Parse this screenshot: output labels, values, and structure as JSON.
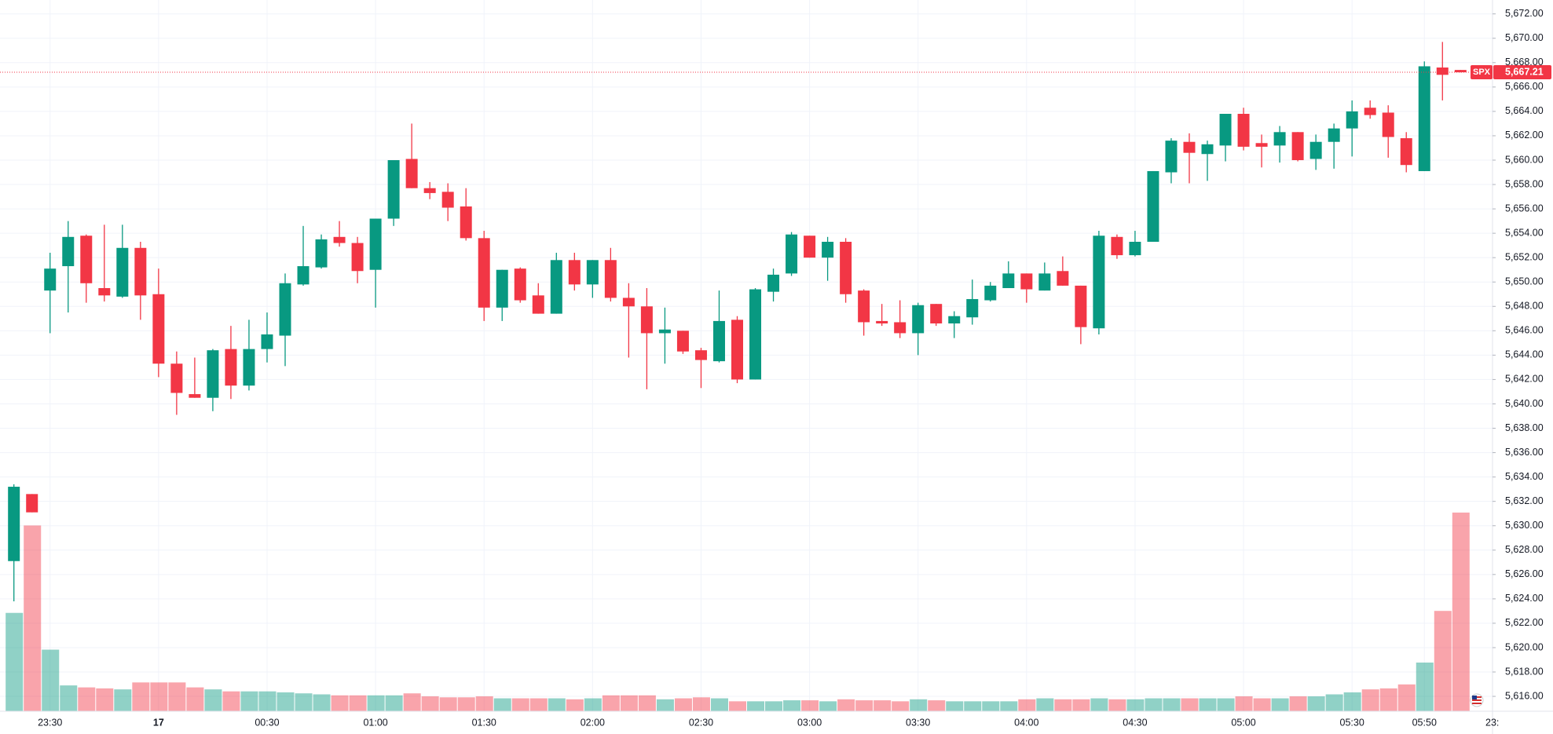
{
  "chart_data": {
    "type": "candlestick",
    "symbol": "SPX",
    "up_color": "#089981",
    "down_color": "#f23645",
    "grid": true,
    "last_price": {
      "value": 5667.21,
      "label": "5,667.21"
    },
    "x_edge_label": "23:",
    "categories": [
      null,
      null,
      "23:30",
      null,
      null,
      null,
      null,
      null,
      "17",
      null,
      null,
      null,
      null,
      null,
      "00:30",
      null,
      null,
      null,
      null,
      null,
      "01:00",
      null,
      null,
      null,
      null,
      null,
      "01:30",
      null,
      null,
      null,
      null,
      null,
      "02:00",
      null,
      null,
      null,
      null,
      null,
      "02:30",
      null,
      null,
      null,
      null,
      null,
      "03:00",
      null,
      null,
      null,
      null,
      null,
      "03:30",
      null,
      null,
      null,
      null,
      null,
      "04:00",
      null,
      null,
      null,
      null,
      null,
      "04:30",
      null,
      null,
      null,
      null,
      null,
      "05:00",
      null,
      null,
      null,
      null,
      null,
      "05:30",
      null,
      null,
      null,
      "05:50",
      null,
      null
    ],
    "open": [
      5627.1,
      5632.6,
      5649.3,
      5651.3,
      5653.8,
      5649.5,
      5648.8,
      5652.8,
      5649.0,
      5643.3,
      5640.8,
      5640.5,
      5644.5,
      5641.5,
      5644.5,
      5645.6,
      5649.8,
      5651.2,
      5653.7,
      5653.2,
      5651.0,
      5655.2,
      5660.1,
      5657.7,
      5657.4,
      5656.2,
      5653.6,
      5647.9,
      5651.1,
      5648.9,
      5647.4,
      5651.8,
      5649.8,
      5651.8,
      5648.7,
      5648.0,
      5645.8,
      5646.0,
      5644.4,
      5643.5,
      5646.9,
      5642.0,
      5649.2,
      5650.7,
      5653.8,
      5652.0,
      5653.3,
      5649.3,
      5646.8,
      5646.7,
      5645.8,
      5648.2,
      5646.6,
      5647.1,
      5648.5,
      5649.5,
      5650.7,
      5649.3,
      5650.9,
      5649.7,
      5646.2,
      5653.7,
      5652.2,
      5653.3,
      5659.0,
      5661.5,
      5660.5,
      5661.2,
      5663.8,
      5661.4,
      5661.2,
      5662.3,
      5660.1,
      5661.5,
      5662.6,
      5664.3,
      5663.9,
      5661.8,
      5659.1,
      5667.6,
      5667.4
    ],
    "high": [
      5633.4,
      5632.6,
      5652.4,
      5655.0,
      5653.9,
      5654.7,
      5654.7,
      5653.3,
      5651.1,
      5644.3,
      5643.8,
      5644.5,
      5646.4,
      5646.9,
      5647.5,
      5650.7,
      5654.6,
      5653.9,
      5655.0,
      5653.7,
      5655.2,
      5660.0,
      5663.0,
      5658.2,
      5658.1,
      5657.7,
      5654.2,
      5651.0,
      5651.2,
      5649.9,
      5652.4,
      5652.4,
      5651.8,
      5652.8,
      5649.9,
      5649.5,
      5647.9,
      5646.0,
      5644.6,
      5649.3,
      5647.2,
      5649.5,
      5651.1,
      5654.1,
      5653.8,
      5653.7,
      5653.6,
      5649.4,
      5648.2,
      5648.5,
      5648.3,
      5648.2,
      5647.6,
      5650.2,
      5650.0,
      5651.7,
      5650.7,
      5651.6,
      5652.1,
      5649.7,
      5654.2,
      5653.9,
      5654.2,
      5659.1,
      5661.8,
      5662.2,
      5661.6,
      5663.8,
      5664.3,
      5662.1,
      5662.8,
      5662.3,
      5662.1,
      5663.0,
      5664.9,
      5664.9,
      5664.5,
      5662.3,
      5668.1,
      5669.7,
      5667.4
    ],
    "low": [
      5623.8,
      5631.1,
      5645.8,
      5647.5,
      5648.3,
      5648.4,
      5648.7,
      5646.9,
      5642.2,
      5639.1,
      5640.5,
      5639.4,
      5640.4,
      5641.1,
      5643.4,
      5643.1,
      5649.7,
      5651.1,
      5652.9,
      5649.9,
      5647.9,
      5654.6,
      5657.7,
      5656.8,
      5655.0,
      5653.4,
      5646.8,
      5646.8,
      5648.3,
      5647.4,
      5647.4,
      5649.3,
      5648.7,
      5648.4,
      5643.8,
      5641.2,
      5643.3,
      5644.1,
      5641.3,
      5643.4,
      5641.7,
      5642.0,
      5648.4,
      5650.5,
      5652.0,
      5650.1,
      5648.3,
      5645.6,
      5646.4,
      5645.4,
      5644.0,
      5646.4,
      5645.4,
      5646.5,
      5648.4,
      5649.5,
      5648.3,
      5649.3,
      5649.7,
      5644.9,
      5645.7,
      5651.9,
      5652.1,
      5653.3,
      5658.1,
      5658.1,
      5658.3,
      5659.9,
      5660.8,
      5659.4,
      5659.8,
      5659.9,
      5659.2,
      5659.3,
      5660.3,
      5663.4,
      5660.2,
      5659.0,
      5659.1,
      5664.9,
      5667.2
    ],
    "close": [
      5633.2,
      5631.1,
      5651.1,
      5653.7,
      5649.9,
      5648.9,
      5652.8,
      5648.9,
      5643.3,
      5640.9,
      5640.5,
      5644.4,
      5641.5,
      5644.5,
      5645.7,
      5649.9,
      5651.3,
      5653.5,
      5653.2,
      5650.9,
      5655.2,
      5660.0,
      5657.7,
      5657.3,
      5656.1,
      5653.6,
      5647.9,
      5651.0,
      5648.5,
      5647.4,
      5651.8,
      5649.8,
      5651.8,
      5648.7,
      5648.0,
      5645.8,
      5646.1,
      5644.3,
      5643.6,
      5646.8,
      5642.0,
      5649.4,
      5650.6,
      5653.9,
      5652.0,
      5653.3,
      5649.0,
      5646.7,
      5646.6,
      5645.8,
      5648.1,
      5646.6,
      5647.2,
      5648.6,
      5649.7,
      5650.7,
      5649.4,
      5650.7,
      5649.7,
      5646.3,
      5653.8,
      5652.2,
      5653.3,
      5659.1,
      5661.6,
      5660.6,
      5661.3,
      5663.8,
      5661.1,
      5661.1,
      5662.3,
      5660.0,
      5661.5,
      5662.6,
      5664.0,
      5663.7,
      5661.9,
      5659.6,
      5667.7,
      5667.0,
      5667.21
    ],
    "volume": [
      99,
      187,
      62,
      26,
      24,
      23,
      22,
      29,
      29,
      29,
      24,
      22,
      20,
      20,
      20,
      19,
      18,
      17,
      16,
      16,
      16,
      16,
      18,
      15,
      14,
      14,
      15,
      13,
      13,
      13,
      13,
      12,
      13,
      16,
      16,
      16,
      12,
      13,
      14,
      13,
      10,
      10,
      10,
      11,
      11,
      10,
      12,
      11,
      11,
      10,
      12,
      11,
      10,
      10,
      10,
      10,
      12,
      13,
      12,
      12,
      13,
      12,
      12,
      13,
      13,
      13,
      13,
      13,
      15,
      13,
      13,
      15,
      15,
      17,
      19,
      22,
      23,
      27,
      49,
      101,
      200
    ],
    "vlim": [
      0,
      716
    ],
    "ylim": [
      5614.78,
      5673.14
    ],
    "yticks": [
      {
        "value": 5616,
        "label": "5,616.00"
      },
      {
        "value": 5618,
        "label": "5,618.00"
      },
      {
        "value": 5620,
        "label": "5,620.00"
      },
      {
        "value": 5622,
        "label": "5,622.00"
      },
      {
        "value": 5624,
        "label": "5,624.00"
      },
      {
        "value": 5626,
        "label": "5,626.00"
      },
      {
        "value": 5628,
        "label": "5,628.00"
      },
      {
        "value": 5630,
        "label": "5,630.00"
      },
      {
        "value": 5632,
        "label": "5,632.00"
      },
      {
        "value": 5634,
        "label": "5,634.00"
      },
      {
        "value": 5636,
        "label": "5,636.00"
      },
      {
        "value": 5638,
        "label": "5,638.00"
      },
      {
        "value": 5640,
        "label": "5,640.00"
      },
      {
        "value": 5642,
        "label": "5,642.00"
      },
      {
        "value": 5644,
        "label": "5,644.00"
      },
      {
        "value": 5646,
        "label": "5,646.00"
      },
      {
        "value": 5648,
        "label": "5,648.00"
      },
      {
        "value": 5650,
        "label": "5,650.00"
      },
      {
        "value": 5652,
        "label": "5,652.00"
      },
      {
        "value": 5654,
        "label": "5,654.00"
      },
      {
        "value": 5656,
        "label": "5,656.00"
      },
      {
        "value": 5658,
        "label": "5,658.00"
      },
      {
        "value": 5660,
        "label": "5,660.00"
      },
      {
        "value": 5662,
        "label": "5,662.00"
      },
      {
        "value": 5664,
        "label": "5,664.00"
      },
      {
        "value": 5666,
        "label": "5,666.00"
      },
      {
        "value": 5668,
        "label": "5,668.00"
      },
      {
        "value": 5670,
        "label": "5,670.00"
      },
      {
        "value": 5672,
        "label": "5,672.00"
      }
    ]
  }
}
